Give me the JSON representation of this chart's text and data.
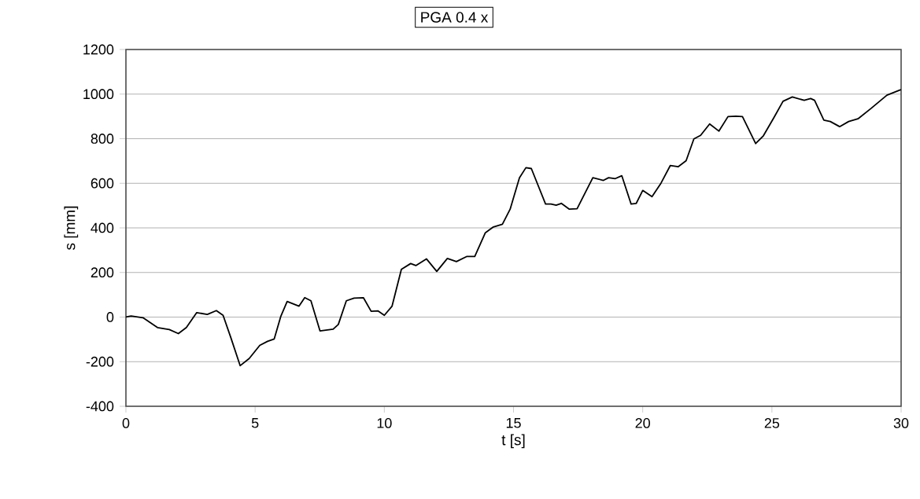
{
  "chart_data": {
    "type": "line",
    "title": "PGA 0.4 x",
    "xlabel": "t [s]",
    "ylabel": "s [mm]",
    "xlim": [
      0,
      30
    ],
    "ylim": [
      -400,
      1200
    ],
    "xticks": [
      0,
      5,
      10,
      15,
      20,
      25,
      30
    ],
    "yticks": [
      -400,
      -200,
      0,
      200,
      400,
      600,
      800,
      1000,
      1200
    ],
    "grid": "y",
    "series": [
      {
        "color": "#000000",
        "x": [
          0,
          0.2,
          0.66,
          1.22,
          1.68,
          2.03,
          2.34,
          2.74,
          3.15,
          3.5,
          3.76,
          4.06,
          4.42,
          4.77,
          5.18,
          5.48,
          5.74,
          5.99,
          6.24,
          6.7,
          6.92,
          7.16,
          7.51,
          8.02,
          8.22,
          8.53,
          8.83,
          9.19,
          9.49,
          9.75,
          10.0,
          10.3,
          10.66,
          11.02,
          11.22,
          11.63,
          12.03,
          12.44,
          12.79,
          13.2,
          13.5,
          13.91,
          14.22,
          14.57,
          14.87,
          15.23,
          15.48,
          15.69,
          16.24,
          16.45,
          16.65,
          16.85,
          17.16,
          17.46,
          18.07,
          18.48,
          18.68,
          18.94,
          19.19,
          19.55,
          19.75,
          20.0,
          20.36,
          20.71,
          21.07,
          21.37,
          21.68,
          21.98,
          22.24,
          22.59,
          22.95,
          23.3,
          23.61,
          23.86,
          24.37,
          24.67,
          25.08,
          25.43,
          25.79,
          26.25,
          26.5,
          26.65,
          27.01,
          27.26,
          27.62,
          27.97,
          28.33,
          28.84,
          29.45,
          29.95,
          30
        ],
        "values": [
          0,
          5,
          -3,
          -47,
          -56,
          -74,
          -47,
          20,
          12,
          29,
          8,
          -92,
          -218,
          -186,
          -127,
          -109,
          -98,
          2,
          70,
          49,
          87,
          73,
          -62,
          -54,
          -33,
          73,
          85,
          87,
          26,
          28,
          8,
          49,
          214,
          240,
          231,
          261,
          205,
          263,
          249,
          272,
          272,
          378,
          404,
          416,
          484,
          625,
          670,
          666,
          507,
          507,
          502,
          510,
          484,
          486,
          625,
          613,
          625,
          621,
          634,
          507,
          510,
          568,
          540,
          601,
          680,
          674,
          701,
          799,
          815,
          866,
          834,
          899,
          901,
          899,
          778,
          813,
          895,
          968,
          987,
          972,
          980,
          972,
          883,
          877,
          854,
          877,
          889,
          936,
          995,
          1018,
          1020
        ]
      }
    ]
  }
}
